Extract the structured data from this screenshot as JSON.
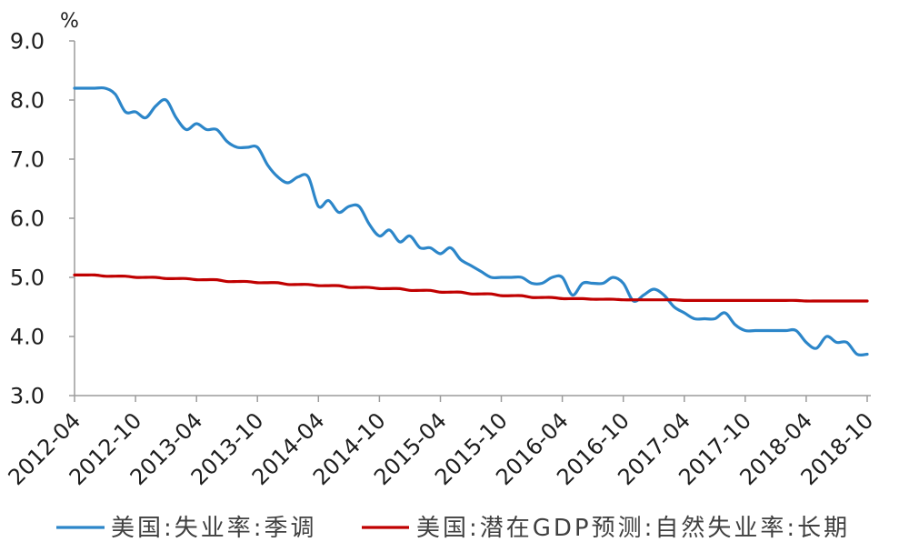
{
  "chart_data": {
    "type": "line",
    "y_unit": "%",
    "ylim": [
      3,
      9
    ],
    "grid": false,
    "legend_position": "bottom",
    "y_tick_labels": [
      "3.0",
      "4.0",
      "5.0",
      "6.0",
      "7.0",
      "8.0",
      "9.0"
    ],
    "x_tick_labels": [
      "2012-04",
      "2012-10",
      "2013-04",
      "2013-10",
      "2014-04",
      "2014-10",
      "2015-04",
      "2015-10",
      "2016-04",
      "2016-10",
      "2017-04",
      "2017-10",
      "2018-04",
      "2018-10"
    ],
    "x": [
      "2012-04",
      "2012-05",
      "2012-06",
      "2012-07",
      "2012-08",
      "2012-09",
      "2012-10",
      "2012-11",
      "2012-12",
      "2013-01",
      "2013-02",
      "2013-03",
      "2013-04",
      "2013-05",
      "2013-06",
      "2013-07",
      "2013-08",
      "2013-09",
      "2013-10",
      "2013-11",
      "2013-12",
      "2014-01",
      "2014-02",
      "2014-03",
      "2014-04",
      "2014-05",
      "2014-06",
      "2014-07",
      "2014-08",
      "2014-09",
      "2014-10",
      "2014-11",
      "2014-12",
      "2015-01",
      "2015-02",
      "2015-03",
      "2015-04",
      "2015-05",
      "2015-06",
      "2015-07",
      "2015-08",
      "2015-09",
      "2015-10",
      "2015-11",
      "2015-12",
      "2016-01",
      "2016-02",
      "2016-03",
      "2016-04",
      "2016-05",
      "2016-06",
      "2016-07",
      "2016-08",
      "2016-09",
      "2016-10",
      "2016-11",
      "2016-12",
      "2017-01",
      "2017-02",
      "2017-03",
      "2017-04",
      "2017-05",
      "2017-06",
      "2017-07",
      "2017-08",
      "2017-09",
      "2017-10",
      "2017-11",
      "2017-12",
      "2018-01",
      "2018-02",
      "2018-03",
      "2018-04",
      "2018-05",
      "2018-06",
      "2018-07",
      "2018-08",
      "2018-09",
      "2018-10"
    ],
    "series": [
      {
        "name": "美国:失业率:季调",
        "color": "#2C86C9",
        "values": [
          8.2,
          8.2,
          8.2,
          8.2,
          8.1,
          7.8,
          7.8,
          7.7,
          7.9,
          8.0,
          7.7,
          7.5,
          7.6,
          7.5,
          7.5,
          7.3,
          7.2,
          7.2,
          7.2,
          6.9,
          6.7,
          6.6,
          6.7,
          6.7,
          6.2,
          6.3,
          6.1,
          6.2,
          6.2,
          5.9,
          5.7,
          5.8,
          5.6,
          5.7,
          5.5,
          5.5,
          5.4,
          5.5,
          5.3,
          5.2,
          5.1,
          5.0,
          5.0,
          5.0,
          5.0,
          4.9,
          4.9,
          5.0,
          5.0,
          4.7,
          4.9,
          4.9,
          4.9,
          5.0,
          4.9,
          4.6,
          4.7,
          4.8,
          4.7,
          4.5,
          4.4,
          4.3,
          4.3,
          4.3,
          4.4,
          4.2,
          4.1,
          4.1,
          4.1,
          4.1,
          4.1,
          4.1,
          3.9,
          3.8,
          4.0,
          3.9,
          3.9,
          3.7,
          3.7
        ]
      },
      {
        "name": "美国:潜在GDP预测:自然失业率:长期",
        "color": "#C00000",
        "values": [
          5.04,
          5.04,
          5.04,
          5.02,
          5.02,
          5.02,
          5.0,
          5.0,
          5.0,
          4.98,
          4.98,
          4.98,
          4.96,
          4.96,
          4.96,
          4.93,
          4.93,
          4.93,
          4.91,
          4.91,
          4.91,
          4.88,
          4.88,
          4.88,
          4.86,
          4.86,
          4.86,
          4.83,
          4.83,
          4.83,
          4.81,
          4.81,
          4.81,
          4.78,
          4.78,
          4.78,
          4.75,
          4.75,
          4.75,
          4.72,
          4.72,
          4.72,
          4.69,
          4.69,
          4.69,
          4.66,
          4.66,
          4.66,
          4.64,
          4.64,
          4.64,
          4.63,
          4.63,
          4.63,
          4.62,
          4.62,
          4.62,
          4.62,
          4.62,
          4.62,
          4.61,
          4.61,
          4.61,
          4.61,
          4.61,
          4.61,
          4.61,
          4.61,
          4.61,
          4.61,
          4.61,
          4.61,
          4.6,
          4.6,
          4.6,
          4.6,
          4.6,
          4.6,
          4.6
        ]
      }
    ]
  }
}
